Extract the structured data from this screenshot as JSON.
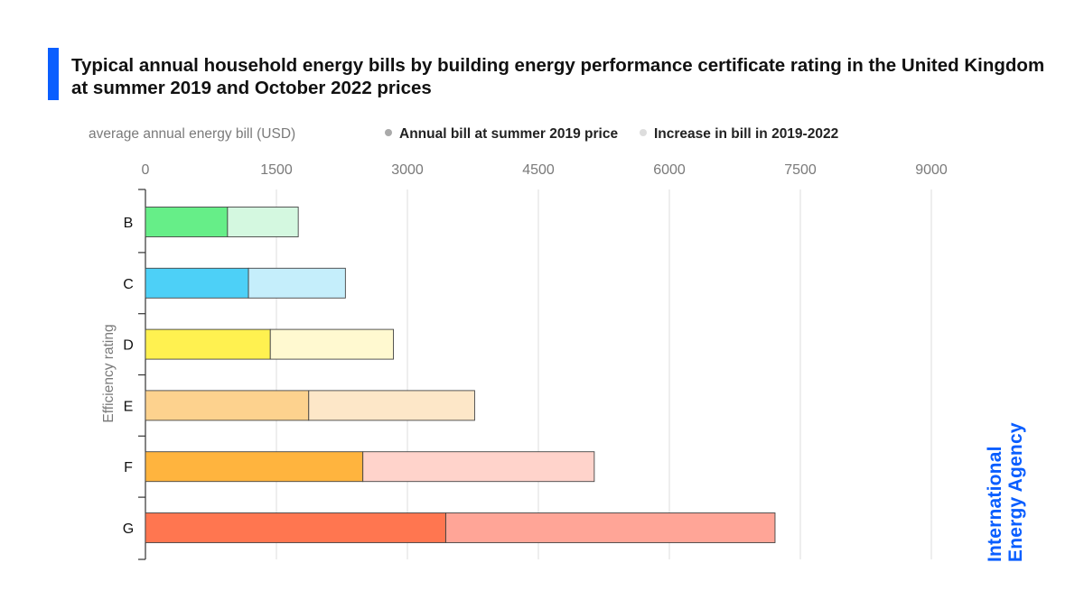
{
  "title": "Typical annual household energy bills by building energy performance certificate rating in the United Kingdom at summer 2019 and October 2022 prices",
  "colors": {
    "accent": "#0a5eff",
    "grid": "#dddddd",
    "axis": "#333333"
  },
  "logo": {
    "line1": "International",
    "line2": "Energy Agency"
  },
  "chart_data": {
    "type": "bar",
    "orientation": "horizontal",
    "stacked": true,
    "title": "Typical annual household energy bills by building energy performance certificate rating in the United Kingdom at summer 2019 and October 2022 prices",
    "xlabel": "average annual energy bill (USD)",
    "ylabel": "Efficiency rating",
    "xlim": [
      0,
      9000
    ],
    "xticks": [
      "0",
      "1500",
      "3000",
      "4500",
      "6000",
      "7500",
      "9000"
    ],
    "xtick_values": [
      0,
      1500,
      3000,
      4500,
      6000,
      7500,
      9000
    ],
    "grid": "vertical",
    "legend_position": "top",
    "categories": [
      "B",
      "C",
      "D",
      "E",
      "F",
      "G"
    ],
    "series": [
      {
        "name": "Annual bill at summer 2019 price",
        "legend_color": "#aaaaaa",
        "values": [
          940,
          1180,
          1430,
          1870,
          2490,
          3440
        ],
        "colors": [
          "#66ee88",
          "#4dd0f7",
          "#fff150",
          "#fdd28e",
          "#ffb43e",
          "#ff7650"
        ]
      },
      {
        "name": "Increase in bill in 2019-2022",
        "legend_color": "#dddddd",
        "values": [
          810,
          1110,
          1410,
          1900,
          2650,
          3770
        ],
        "colors": [
          "#d4f8e0",
          "#c5eefb",
          "#fff9d0",
          "#fde7c8",
          "#ffd3cb",
          "#ffa597"
        ]
      }
    ]
  }
}
